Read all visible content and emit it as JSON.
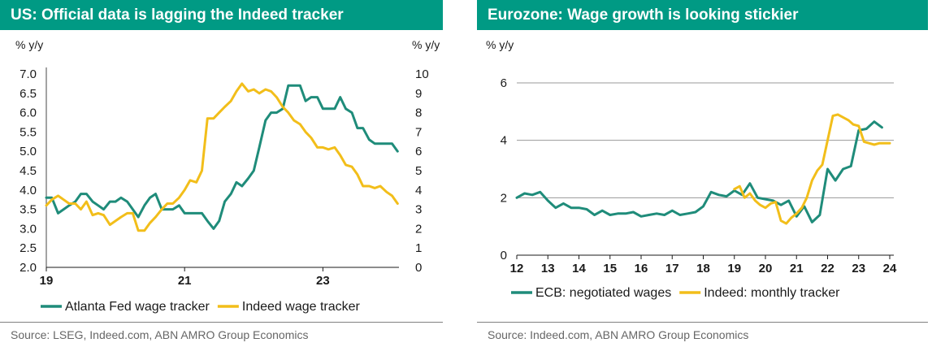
{
  "colors": {
    "green": "#1f8c7a",
    "yellow": "#f2be1a",
    "header": "#009a84"
  },
  "chart_data": [
    {
      "type": "line",
      "title": "US: Official data is lagging the Indeed tracker",
      "left_unit": "% y/y",
      "right_unit": "% y/y",
      "source": "Source: LSEG, Indeed.com, ABN AMRO Group Economics",
      "x_ticks": [
        {
          "x": 2019.0,
          "label": "19"
        },
        {
          "x": 2021.0,
          "label": "21"
        },
        {
          "x": 2023.0,
          "label": "23"
        }
      ],
      "xlim": [
        2019.0,
        2024.1
      ],
      "left_axis": {
        "ylim": [
          2.0,
          7.0
        ],
        "ticks": [
          "2.0",
          "2.5",
          "3.0",
          "3.5",
          "4.0",
          "4.5",
          "5.0",
          "5.5",
          "6.0",
          "6.5",
          "7.0"
        ]
      },
      "right_axis": {
        "ylim": [
          0,
          10
        ],
        "ticks": [
          "0",
          "1",
          "2",
          "3",
          "4",
          "5",
          "6",
          "7",
          "8",
          "9",
          "10"
        ]
      },
      "grid": false,
      "legend_position": "bottom",
      "series": [
        {
          "name": "Atlanta Fed wage tracker",
          "axis": "left",
          "color": "#1f8c7a",
          "x": [
            2019.0,
            2019.08,
            2019.17,
            2019.25,
            2019.33,
            2019.42,
            2019.5,
            2019.58,
            2019.67,
            2019.75,
            2019.83,
            2019.92,
            2020.0,
            2020.08,
            2020.17,
            2020.25,
            2020.33,
            2020.42,
            2020.5,
            2020.58,
            2020.67,
            2020.75,
            2020.83,
            2020.92,
            2021.0,
            2021.08,
            2021.17,
            2021.25,
            2021.33,
            2021.42,
            2021.5,
            2021.58,
            2021.67,
            2021.75,
            2021.83,
            2021.92,
            2022.0,
            2022.08,
            2022.17,
            2022.25,
            2022.33,
            2022.42,
            2022.5,
            2022.58,
            2022.67,
            2022.75,
            2022.83,
            2022.92,
            2023.0,
            2023.08,
            2023.17,
            2023.25,
            2023.33,
            2023.42,
            2023.5,
            2023.58,
            2023.67,
            2023.75,
            2023.83,
            2023.92,
            2024.0,
            2024.08
          ],
          "values": [
            3.8,
            3.8,
            3.4,
            3.5,
            3.6,
            3.7,
            3.9,
            3.9,
            3.7,
            3.6,
            3.5,
            3.7,
            3.7,
            3.8,
            3.7,
            3.5,
            3.3,
            3.6,
            3.8,
            3.9,
            3.5,
            3.5,
            3.5,
            3.6,
            3.4,
            3.4,
            3.4,
            3.4,
            3.2,
            3.0,
            3.2,
            3.7,
            3.9,
            4.2,
            4.1,
            4.3,
            4.5,
            5.1,
            5.8,
            6.0,
            6.0,
            6.1,
            6.7,
            6.7,
            6.7,
            6.3,
            6.4,
            6.4,
            6.1,
            6.1,
            6.1,
            6.4,
            6.1,
            6.0,
            5.6,
            5.6,
            5.3,
            5.2,
            5.2,
            5.2,
            5.2,
            5.0
          ]
        },
        {
          "name": "Indeed wage tracker",
          "axis": "right",
          "color": "#f2be1a",
          "x": [
            2019.0,
            2019.08,
            2019.17,
            2019.25,
            2019.33,
            2019.42,
            2019.5,
            2019.58,
            2019.67,
            2019.75,
            2019.83,
            2019.92,
            2020.0,
            2020.08,
            2020.17,
            2020.25,
            2020.33,
            2020.42,
            2020.5,
            2020.58,
            2020.67,
            2020.75,
            2020.83,
            2020.92,
            2021.0,
            2021.08,
            2021.17,
            2021.25,
            2021.33,
            2021.42,
            2021.5,
            2021.58,
            2021.67,
            2021.75,
            2021.83,
            2021.92,
            2022.0,
            2022.08,
            2022.17,
            2022.25,
            2022.33,
            2022.42,
            2022.5,
            2022.58,
            2022.67,
            2022.75,
            2022.83,
            2022.92,
            2023.0,
            2023.08,
            2023.17,
            2023.25,
            2023.33,
            2023.42,
            2023.5,
            2023.58,
            2023.67,
            2023.75,
            2023.83,
            2023.92,
            2024.0,
            2024.08
          ],
          "values": [
            3.2,
            3.5,
            3.7,
            3.5,
            3.3,
            3.3,
            3.0,
            3.4,
            2.7,
            2.8,
            2.7,
            2.2,
            2.4,
            2.6,
            2.8,
            2.8,
            1.9,
            1.9,
            2.3,
            2.6,
            3.0,
            3.3,
            3.3,
            3.6,
            4.0,
            4.5,
            4.4,
            5.0,
            7.7,
            7.7,
            8.0,
            8.3,
            8.6,
            9.1,
            9.5,
            9.1,
            9.2,
            9.0,
            9.2,
            9.1,
            8.8,
            8.3,
            8.0,
            7.6,
            7.4,
            7.0,
            6.7,
            6.2,
            6.2,
            6.1,
            6.2,
            5.8,
            5.3,
            5.2,
            4.8,
            4.2,
            4.2,
            4.1,
            4.2,
            3.9,
            3.7,
            3.3
          ]
        }
      ]
    },
    {
      "type": "line",
      "title": "Eurozone: Wage growth is looking stickier",
      "left_unit": "% y/y",
      "source": "Source: Indeed.com, ABN AMRO Group Economics",
      "x_ticks": [
        {
          "x": 2012,
          "label": "12"
        },
        {
          "x": 2013,
          "label": "13"
        },
        {
          "x": 2014,
          "label": "14"
        },
        {
          "x": 2015,
          "label": "15"
        },
        {
          "x": 2016,
          "label": "16"
        },
        {
          "x": 2017,
          "label": "17"
        },
        {
          "x": 2018,
          "label": "18"
        },
        {
          "x": 2019,
          "label": "19"
        },
        {
          "x": 2020,
          "label": "20"
        },
        {
          "x": 2021,
          "label": "21"
        },
        {
          "x": 2022,
          "label": "22"
        },
        {
          "x": 2023,
          "label": "23"
        },
        {
          "x": 2024,
          "label": "24"
        }
      ],
      "xlim": [
        2012.0,
        2024.0
      ],
      "left_axis": {
        "ylim": [
          0,
          6
        ],
        "ticks": [
          "0",
          "2",
          "4",
          "6"
        ]
      },
      "grid": true,
      "legend_position": "bottom",
      "series": [
        {
          "name": "ECB: negotiated wages",
          "axis": "left",
          "color": "#1f8c7a",
          "x": [
            2012.0,
            2012.25,
            2012.5,
            2012.75,
            2013.0,
            2013.25,
            2013.5,
            2013.75,
            2014.0,
            2014.25,
            2014.5,
            2014.75,
            2015.0,
            2015.25,
            2015.5,
            2015.75,
            2016.0,
            2016.25,
            2016.5,
            2016.75,
            2017.0,
            2017.25,
            2017.5,
            2017.75,
            2018.0,
            2018.25,
            2018.5,
            2018.75,
            2019.0,
            2019.25,
            2019.5,
            2019.75,
            2020.0,
            2020.25,
            2020.5,
            2020.75,
            2021.0,
            2021.25,
            2021.5,
            2021.75,
            2022.0,
            2022.25,
            2022.5,
            2022.75,
            2023.0,
            2023.25,
            2023.5,
            2023.75
          ],
          "values": [
            2.0,
            2.15,
            2.1,
            2.2,
            1.9,
            1.65,
            1.8,
            1.65,
            1.65,
            1.6,
            1.4,
            1.55,
            1.4,
            1.45,
            1.45,
            1.5,
            1.35,
            1.4,
            1.45,
            1.4,
            1.55,
            1.4,
            1.45,
            1.5,
            1.7,
            2.2,
            2.1,
            2.05,
            2.25,
            2.1,
            2.5,
            2.0,
            1.95,
            1.9,
            1.75,
            1.9,
            1.35,
            1.7,
            1.15,
            1.4,
            3.0,
            2.6,
            3.0,
            3.1,
            4.35,
            4.4,
            4.65,
            4.45
          ]
        },
        {
          "name": "Indeed: monthly tracker",
          "axis": "left",
          "color": "#f2be1a",
          "x": [
            2019.0,
            2019.17,
            2019.33,
            2019.5,
            2019.67,
            2019.83,
            2020.0,
            2020.17,
            2020.33,
            2020.5,
            2020.67,
            2020.83,
            2021.0,
            2021.17,
            2021.33,
            2021.5,
            2021.67,
            2021.83,
            2022.0,
            2022.17,
            2022.33,
            2022.5,
            2022.67,
            2022.83,
            2023.0,
            2023.17,
            2023.33,
            2023.5,
            2023.67,
            2023.83,
            2024.0
          ],
          "values": [
            2.3,
            2.4,
            2.0,
            2.15,
            1.9,
            1.75,
            1.65,
            1.8,
            1.85,
            1.2,
            1.1,
            1.3,
            1.45,
            1.65,
            2.0,
            2.6,
            2.95,
            3.15,
            4.0,
            4.85,
            4.9,
            4.8,
            4.7,
            4.55,
            4.5,
            3.95,
            3.9,
            3.85,
            3.9,
            3.9,
            3.9
          ]
        }
      ]
    }
  ]
}
